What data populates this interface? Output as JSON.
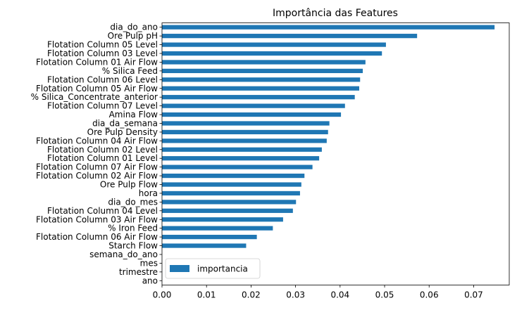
{
  "chart_data": {
    "type": "bar",
    "orientation": "horizontal",
    "title": "Importância das Features",
    "xlabel": "",
    "ylabel": "",
    "xlim": [
      0,
      0.078
    ],
    "xticks": [
      0.0,
      0.01,
      0.02,
      0.03,
      0.04,
      0.05,
      0.06,
      0.07
    ],
    "xtick_labels": [
      "0.00",
      "0.01",
      "0.02",
      "0.03",
      "0.04",
      "0.05",
      "0.06",
      "0.07"
    ],
    "grid": false,
    "legend_position": "lower-left",
    "bar_color": "#1f77b4",
    "categories": [
      "dia_do_ano",
      "Ore Pulp pH",
      "Flotation Column 05 Level",
      "Flotation Column 03 Level",
      "Flotation Column 01 Air Flow",
      "% Silica Feed",
      "Flotation Column 06 Level",
      "Flotation Column 05 Air Flow",
      "% Silica_Concentrate_anterior",
      "Flotation Column 07 Level",
      "Amina Flow",
      "dia_da_semana",
      "Ore Pulp Density",
      "Flotation Column 04 Air Flow",
      "Flotation Column 02 Level",
      "Flotation Column 01 Level",
      "Flotation Column 07 Air Flow",
      "Flotation Column 02 Air Flow",
      "Ore Pulp Flow",
      "hora",
      "dia_do_mes",
      "Flotation Column 04 Level",
      "Flotation Column 03 Air Flow",
      "% Iron Feed",
      "Flotation Column 06 Air Flow",
      "Starch Flow",
      "semana_do_ano",
      "mes",
      "trimestre",
      "ano"
    ],
    "series": [
      {
        "name": "importancia",
        "values": [
          0.0747,
          0.0573,
          0.0503,
          0.0494,
          0.0457,
          0.0451,
          0.0445,
          0.0443,
          0.0433,
          0.0411,
          0.0402,
          0.0376,
          0.0373,
          0.037,
          0.0359,
          0.0353,
          0.0338,
          0.032,
          0.0313,
          0.031,
          0.0301,
          0.0294,
          0.0272,
          0.0249,
          0.0213,
          0.0189,
          0.0,
          0.0,
          0.0,
          0.0
        ]
      }
    ]
  }
}
